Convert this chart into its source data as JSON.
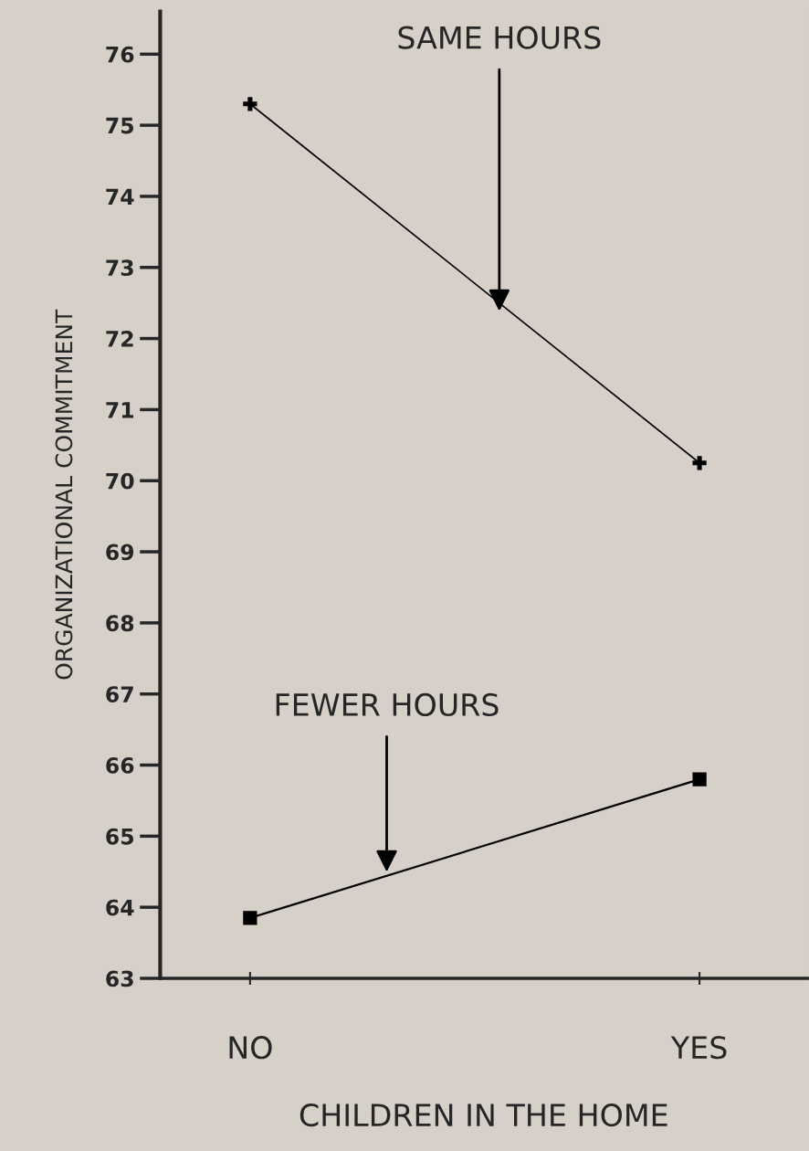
{
  "chart_data": {
    "type": "line",
    "xlabel": "CHILDREN IN THE HOME",
    "ylabel": "ORGANIZATIONAL COMMITMENT",
    "categories": [
      "NO",
      "YES"
    ],
    "series": [
      {
        "name": "SAME HOURS",
        "color": "#000000",
        "marker": "cross",
        "values": [
          75.3,
          70.25
        ]
      },
      {
        "name": "FEWER HOURS",
        "color": "#000000",
        "marker": "square",
        "values": [
          63.85,
          65.8
        ]
      }
    ],
    "ylim": [
      63,
      76.6
    ],
    "yticks": [
      63,
      64,
      65,
      66,
      67,
      68,
      69,
      70,
      71,
      72,
      73,
      74,
      75,
      76
    ],
    "grid": false,
    "legend": false
  }
}
